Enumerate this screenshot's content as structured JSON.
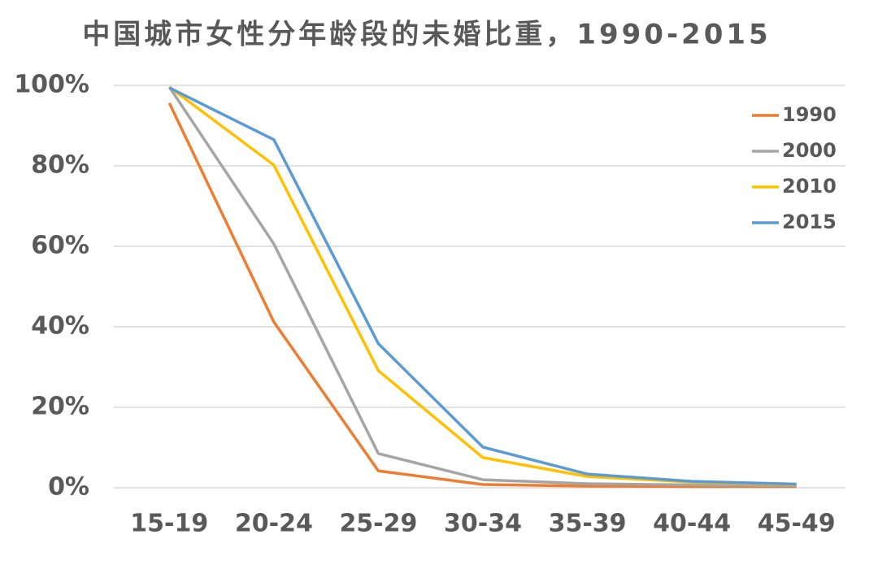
{
  "chart_data": {
    "type": "line",
    "title": "中国城市女性分年龄段的未婚比重，1990-2015",
    "categories": [
      "15-19",
      "20-24",
      "25-29",
      "30-34",
      "35-39",
      "40-44",
      "45-49"
    ],
    "series": [
      {
        "name": "1990",
        "color": "#ed7d31",
        "values": [
          95.6,
          41.2,
          4.2,
          0.8,
          0.4,
          0.3,
          0.3
        ]
      },
      {
        "name": "2000",
        "color": "#a5a5a5",
        "values": [
          99.6,
          60.6,
          8.5,
          2.0,
          1.0,
          0.7,
          0.5
        ]
      },
      {
        "name": "2010",
        "color": "#ffc000",
        "values": [
          99.6,
          80.2,
          29.1,
          7.5,
          2.8,
          1.4,
          0.8
        ]
      },
      {
        "name": "2015",
        "color": "#5b9bd5",
        "values": [
          99.4,
          86.5,
          35.8,
          10.1,
          3.4,
          1.6,
          0.9
        ]
      }
    ],
    "ylim": [
      0,
      100
    ],
    "yticks": [
      {
        "value": 0,
        "label": "0%"
      },
      {
        "value": 20,
        "label": "20%"
      },
      {
        "value": 40,
        "label": "40%"
      },
      {
        "value": 60,
        "label": "60%"
      },
      {
        "value": 80,
        "label": "80%"
      },
      {
        "value": 100,
        "label": "100%"
      }
    ],
    "grid": true,
    "legend": "top-right"
  }
}
